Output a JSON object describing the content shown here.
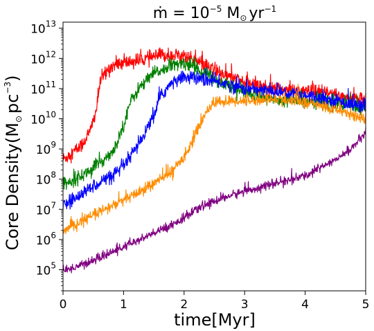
{
  "chart_data": {
    "type": "line",
    "title": {
      "mdot": "ṁ",
      "eq": " = 10",
      "exp": "−5",
      "unit_a": " M",
      "sun": "⊙",
      "unit_b": "yr",
      "unit_exp": "−1"
    },
    "xlabel": "time[Myr]",
    "ylabel": {
      "main": "Core Density(M",
      "sun": "⊙",
      "unit": "pc",
      "exp": "−3",
      "close": ")"
    },
    "xlim": [
      0,
      5
    ],
    "ylim_log10": [
      4.3,
      13.2
    ],
    "yscale": "log",
    "xticks": [
      {
        "value": 0,
        "label": "0"
      },
      {
        "value": 1,
        "label": "1"
      },
      {
        "value": 2,
        "label": "2"
      },
      {
        "value": 3,
        "label": "3"
      },
      {
        "value": 4,
        "label": "4"
      },
      {
        "value": 5,
        "label": "5"
      }
    ],
    "yticks": [
      {
        "exp10": 5,
        "base": "10",
        "exp": "5"
      },
      {
        "exp10": 6,
        "base": "10",
        "exp": "6"
      },
      {
        "exp10": 7,
        "base": "10",
        "exp": "7"
      },
      {
        "exp10": 8,
        "base": "10",
        "exp": "8"
      },
      {
        "exp10": 9,
        "base": "10",
        "exp": "9"
      },
      {
        "exp10": 10,
        "base": "10",
        "exp": "10"
      },
      {
        "exp10": 11,
        "base": "10",
        "exp": "11"
      },
      {
        "exp10": 12,
        "base": "10",
        "exp": "12"
      },
      {
        "exp10": 13,
        "base": "10",
        "exp": "13"
      }
    ],
    "grid": false,
    "legend": "none",
    "series": [
      {
        "color": "#ff0000",
        "noise_dex": 0.22,
        "points": [
          [
            0,
            8.65
          ],
          [
            0.3,
            9.1
          ],
          [
            0.45,
            9.6
          ],
          [
            0.55,
            10.3
          ],
          [
            0.62,
            11.3
          ],
          [
            0.8,
            11.75
          ],
          [
            1.0,
            11.85
          ],
          [
            1.3,
            11.95
          ],
          [
            1.6,
            12.1
          ],
          [
            2.0,
            12.1
          ],
          [
            2.3,
            11.8
          ],
          [
            2.6,
            11.5
          ],
          [
            3.0,
            11.2
          ],
          [
            3.5,
            11.0
          ],
          [
            4.0,
            10.9
          ],
          [
            4.5,
            10.8
          ],
          [
            5.0,
            10.6
          ]
        ]
      },
      {
        "color": "#008000",
        "noise_dex": 0.2,
        "points": [
          [
            0,
            7.85
          ],
          [
            0.3,
            8.1
          ],
          [
            0.6,
            8.5
          ],
          [
            0.85,
            9.0
          ],
          [
            1.0,
            9.8
          ],
          [
            1.1,
            10.5
          ],
          [
            1.25,
            11.0
          ],
          [
            1.5,
            11.5
          ],
          [
            1.8,
            11.75
          ],
          [
            2.0,
            11.85
          ],
          [
            2.2,
            11.7
          ],
          [
            2.5,
            11.3
          ],
          [
            3.0,
            10.9
          ],
          [
            3.5,
            10.6
          ],
          [
            4.0,
            10.6
          ],
          [
            4.5,
            10.5
          ],
          [
            5.0,
            10.35
          ]
        ]
      },
      {
        "color": "#0000ff",
        "noise_dex": 0.2,
        "points": [
          [
            0,
            7.1
          ],
          [
            0.3,
            7.5
          ],
          [
            0.6,
            7.9
          ],
          [
            0.9,
            8.2
          ],
          [
            1.1,
            8.7
          ],
          [
            1.3,
            9.3
          ],
          [
            1.5,
            10.1
          ],
          [
            1.6,
            10.7
          ],
          [
            1.75,
            11.1
          ],
          [
            2.0,
            11.4
          ],
          [
            2.3,
            11.3
          ],
          [
            2.6,
            11.2
          ],
          [
            3.0,
            11.0
          ],
          [
            3.5,
            10.9
          ],
          [
            4.0,
            10.8
          ],
          [
            4.5,
            10.6
          ],
          [
            5.0,
            10.4
          ]
        ]
      },
      {
        "color": "#ff8c00",
        "noise_dex": 0.17,
        "points": [
          [
            0,
            6.25
          ],
          [
            0.3,
            6.6
          ],
          [
            0.6,
            6.9
          ],
          [
            0.9,
            7.2
          ],
          [
            1.2,
            7.5
          ],
          [
            1.5,
            7.85
          ],
          [
            1.8,
            8.25
          ],
          [
            2.0,
            8.75
          ],
          [
            2.2,
            9.5
          ],
          [
            2.35,
            10.2
          ],
          [
            2.5,
            10.55
          ],
          [
            3.0,
            10.6
          ],
          [
            3.5,
            10.65
          ],
          [
            4.0,
            10.55
          ],
          [
            4.4,
            10.35
          ],
          [
            4.7,
            10.2
          ],
          [
            5.0,
            9.95
          ]
        ]
      },
      {
        "color": "#800080",
        "noise_dex": 0.13,
        "points": [
          [
            0,
            4.95
          ],
          [
            0.5,
            5.3
          ],
          [
            1.0,
            5.75
          ],
          [
            1.5,
            6.2
          ],
          [
            2.0,
            6.7
          ],
          [
            2.3,
            7.1
          ],
          [
            2.6,
            7.35
          ],
          [
            3.0,
            7.6
          ],
          [
            3.5,
            7.85
          ],
          [
            4.0,
            8.1
          ],
          [
            4.3,
            8.45
          ],
          [
            4.6,
            8.75
          ],
          [
            4.8,
            9.1
          ],
          [
            5.0,
            9.5
          ]
        ]
      }
    ]
  }
}
